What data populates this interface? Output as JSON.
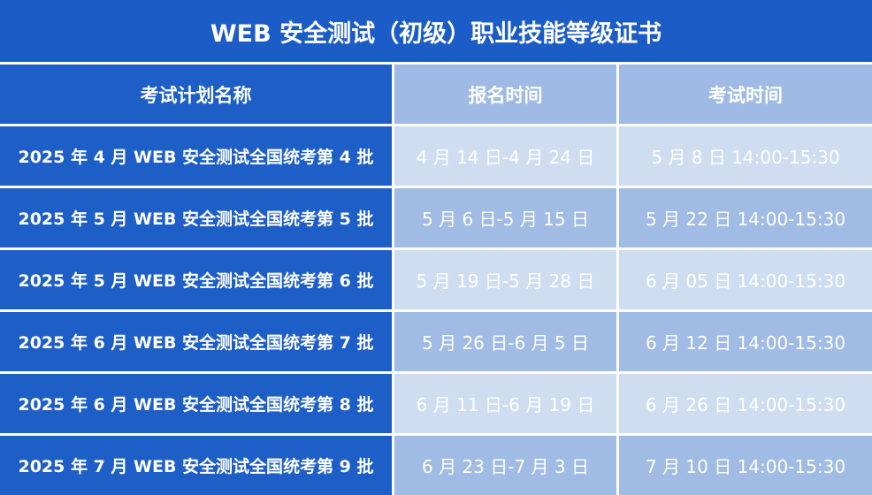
{
  "title": "WEB 安全测试（初级）职业技能等级证书",
  "colors": {
    "title_bg": "#1b5cc6",
    "name_col_bg": "#1d5ec7",
    "row_light": "#cfddf1",
    "row_mid": "#a0bbe4"
  },
  "table": {
    "headers": [
      "考试计划名称",
      "报名时间",
      "考试时间"
    ],
    "rows": [
      [
        "2025 年 4 月 WEB 安全测试全国统考第 4 批",
        "4 月 14 日-4 月 24 日",
        "5 月 8 日  14:00-15:30"
      ],
      [
        "2025 年 5 月 WEB 安全测试全国统考第 5 批",
        "5 月 6 日-5 月 15 日",
        "5 月 22 日  14:00-15:30"
      ],
      [
        "2025 年 5 月 WEB 安全测试全国统考第 6 批",
        "5 月 19 日-5 月 28 日",
        "6 月 05 日  14:00-15:30"
      ],
      [
        "2025 年 6 月 WEB 安全测试全国统考第 7 批",
        "5 月 26 日-6 月 5 日",
        "6 月 12 日  14:00-15:30"
      ],
      [
        "2025 年 6 月 WEB 安全测试全国统考第 8 批",
        "6 月 11 日-6 月 19 日",
        "6 月 26 日  14:00-15:30"
      ],
      [
        "2025 年 7 月 WEB 安全测试全国统考第 9 批",
        "6 月 23 日-7 月 3 日",
        "7 月 10 日  14:00-15:30"
      ]
    ]
  }
}
